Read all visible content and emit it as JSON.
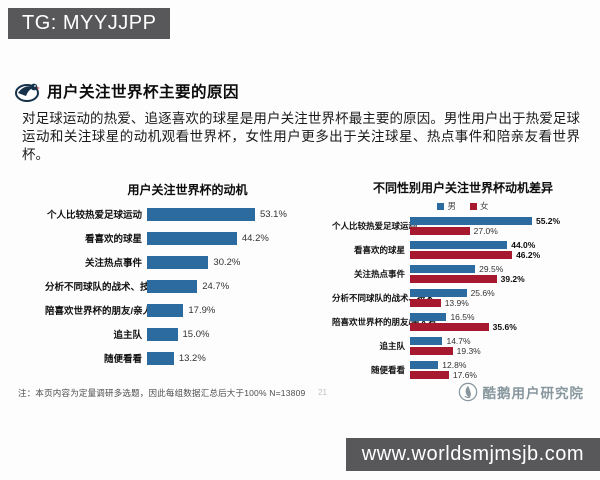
{
  "overlay": {
    "top_left_badge": "TG: MYYJJPP",
    "bottom_right_badge": "www.worldsmjmsjb.com"
  },
  "slide": {
    "title": "用户关注世界杯主要的原因",
    "body": "对足球运动的热爱、追逐喜欢的球星是用户关注世界杯最主要的原因。男性用户出于热爱足球运动和关注球星的动机观看世界杯，女性用户更多出于关注球星、热点事件和陪亲友看世界杯。",
    "footnote": "注：本页内容为定量调研多选题，因此每组数据汇总后大于100%  N=13809",
    "page_number": "21",
    "logo_text": "酷鹅用户研究院"
  },
  "colors": {
    "male_blue": "#2C6B9F",
    "female_red": "#A6192E",
    "badge_bg": "#58585A"
  },
  "chart_data": [
    {
      "type": "bar",
      "orientation": "horizontal",
      "title": "用户关注世界杯的动机",
      "categories": [
        "个人比较热爱足球运动",
        "看喜欢的球星",
        "关注热点事件",
        "分析不同球队的战术、技术",
        "陪喜欢世界杯的朋友/亲人看",
        "追主队",
        "随便看看"
      ],
      "values": [
        53.1,
        44.2,
        30.2,
        24.7,
        17.9,
        15.0,
        13.2
      ],
      "value_labels": [
        "53.1%",
        "44.2%",
        "30.2%",
        "24.7%",
        "17.9%",
        "15.0%",
        "13.2%"
      ],
      "xlim": [
        0,
        60
      ],
      "bar_color": "#2C6B9F",
      "grid": false,
      "legend_position": "none"
    },
    {
      "type": "bar",
      "orientation": "horizontal",
      "title": "不同性别用户关注世界杯动机差异",
      "categories": [
        "个人比较热爱足球运动",
        "看喜欢的球星",
        "关注热点事件",
        "分析不同球队的战术、技术",
        "陪喜欢世界杯的朋友/亲人看",
        "追主队",
        "随便看看"
      ],
      "series": [
        {
          "name": "男",
          "color": "#2C6B9F",
          "values": [
            55.2,
            44.0,
            29.5,
            25.6,
            16.5,
            14.7,
            12.8
          ],
          "value_labels": [
            "55.2%",
            "44.0%",
            "29.5%",
            "25.6%",
            "16.5%",
            "14.7%",
            "12.8%"
          ]
        },
        {
          "name": "女",
          "color": "#A6192E",
          "values": [
            27.0,
            46.2,
            39.2,
            13.9,
            35.6,
            19.3,
            17.6
          ],
          "value_labels": [
            "27.0%",
            "46.2%",
            "39.2%",
            "13.9%",
            "35.6%",
            "19.3%",
            "17.6%"
          ]
        }
      ],
      "xlim": [
        0,
        62
      ],
      "grid": false,
      "legend_position": "top"
    }
  ]
}
